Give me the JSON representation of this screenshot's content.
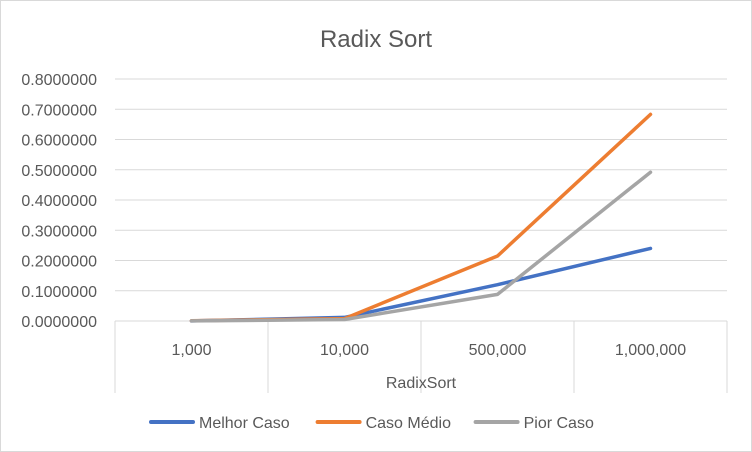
{
  "chart_data": {
    "type": "line",
    "title": "Radix Sort",
    "xlabel": "RadixSort",
    "ylabel": "",
    "categories": [
      "1,000",
      "10,000",
      "500,000",
      "1,000,000"
    ],
    "y_ticks": [
      "0.0000000",
      "0.1000000",
      "0.2000000",
      "0.3000000",
      "0.4000000",
      "0.5000000",
      "0.6000000",
      "0.7000000",
      "0.8000000"
    ],
    "ylim": [
      0,
      0.8
    ],
    "grid": true,
    "legend_position": "bottom",
    "series": [
      {
        "name": "Melhor Caso",
        "color": "#4472c4",
        "values": [
          0.0003,
          0.012,
          0.12,
          0.24
        ]
      },
      {
        "name": "Caso Médio",
        "color": "#ed7d31",
        "values": [
          0.0005,
          0.008,
          0.215,
          0.683
        ]
      },
      {
        "name": "Pior Caso",
        "color": "#a5a5a5",
        "values": [
          0.0002,
          0.005,
          0.088,
          0.492
        ]
      }
    ]
  }
}
